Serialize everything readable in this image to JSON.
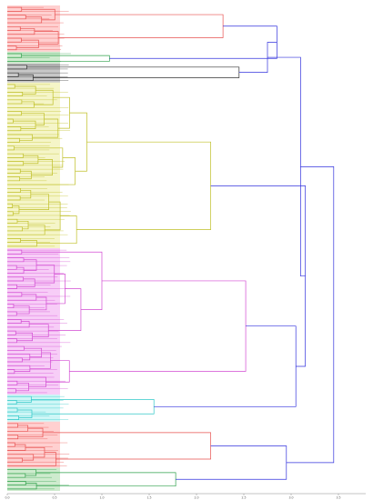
{
  "chart_data": {
    "type": "dendrogram",
    "orientation": "horizontal",
    "title": "",
    "xlabel": "",
    "ylabel": "",
    "x_ticks": [
      "0.0",
      "0.5",
      "1.0",
      "1.5",
      "2.0",
      "2.5",
      "3.0",
      "3.5"
    ],
    "xlim": [
      0,
      4.0
    ],
    "grid": false,
    "legend": "none",
    "leaf_labels_legible": false,
    "root_color": "#3333dd",
    "clusters": [
      {
        "color": "#e8504f",
        "leaf_band": "#ffaaaa",
        "leaves": 12,
        "merge_height": 2.28
      },
      {
        "color": "#2ea04a",
        "leaf_band": "#a6dba6",
        "leaves": 3,
        "merge_height": 1.08
      },
      {
        "color": "#333333",
        "leaf_band": "#999999",
        "leaves": 5,
        "merge_height": 2.45
      },
      {
        "color": "#bfbf26",
        "leaf_band": "#ecec9a",
        "leaves": 43,
        "merge_height": 2.15
      },
      {
        "color": "#d24ad2",
        "leaf_band": "#f0a4f0",
        "leaves": 38,
        "merge_height": 2.52
      },
      {
        "color": "#30c8c8",
        "leaf_band": "#a6eeee",
        "leaves": 7,
        "merge_height": 1.55
      },
      {
        "color": "#e8504f",
        "leaf_band": "#ffaaaa",
        "leaves": 12,
        "merge_height": 2.15
      },
      {
        "color": "#2ea04a",
        "leaf_band": "#a6dba6",
        "leaves": 6,
        "merge_height": 1.78
      }
    ],
    "top_merges": [
      {
        "join": [
          0,
          1
        ],
        "height": 2.85
      },
      {
        "join": [
          "m0",
          2
        ],
        "height": 2.75
      },
      {
        "join": [
          4,
          5
        ],
        "height": 3.05
      },
      {
        "join": [
          3,
          "m2"
        ],
        "height": 3.15
      },
      {
        "join": [
          "m1",
          "m3"
        ],
        "height": 3.1
      },
      {
        "join": [
          6,
          7
        ],
        "height": 2.95
      },
      {
        "join": [
          "m4",
          "m5"
        ],
        "height": 3.45
      }
    ]
  }
}
